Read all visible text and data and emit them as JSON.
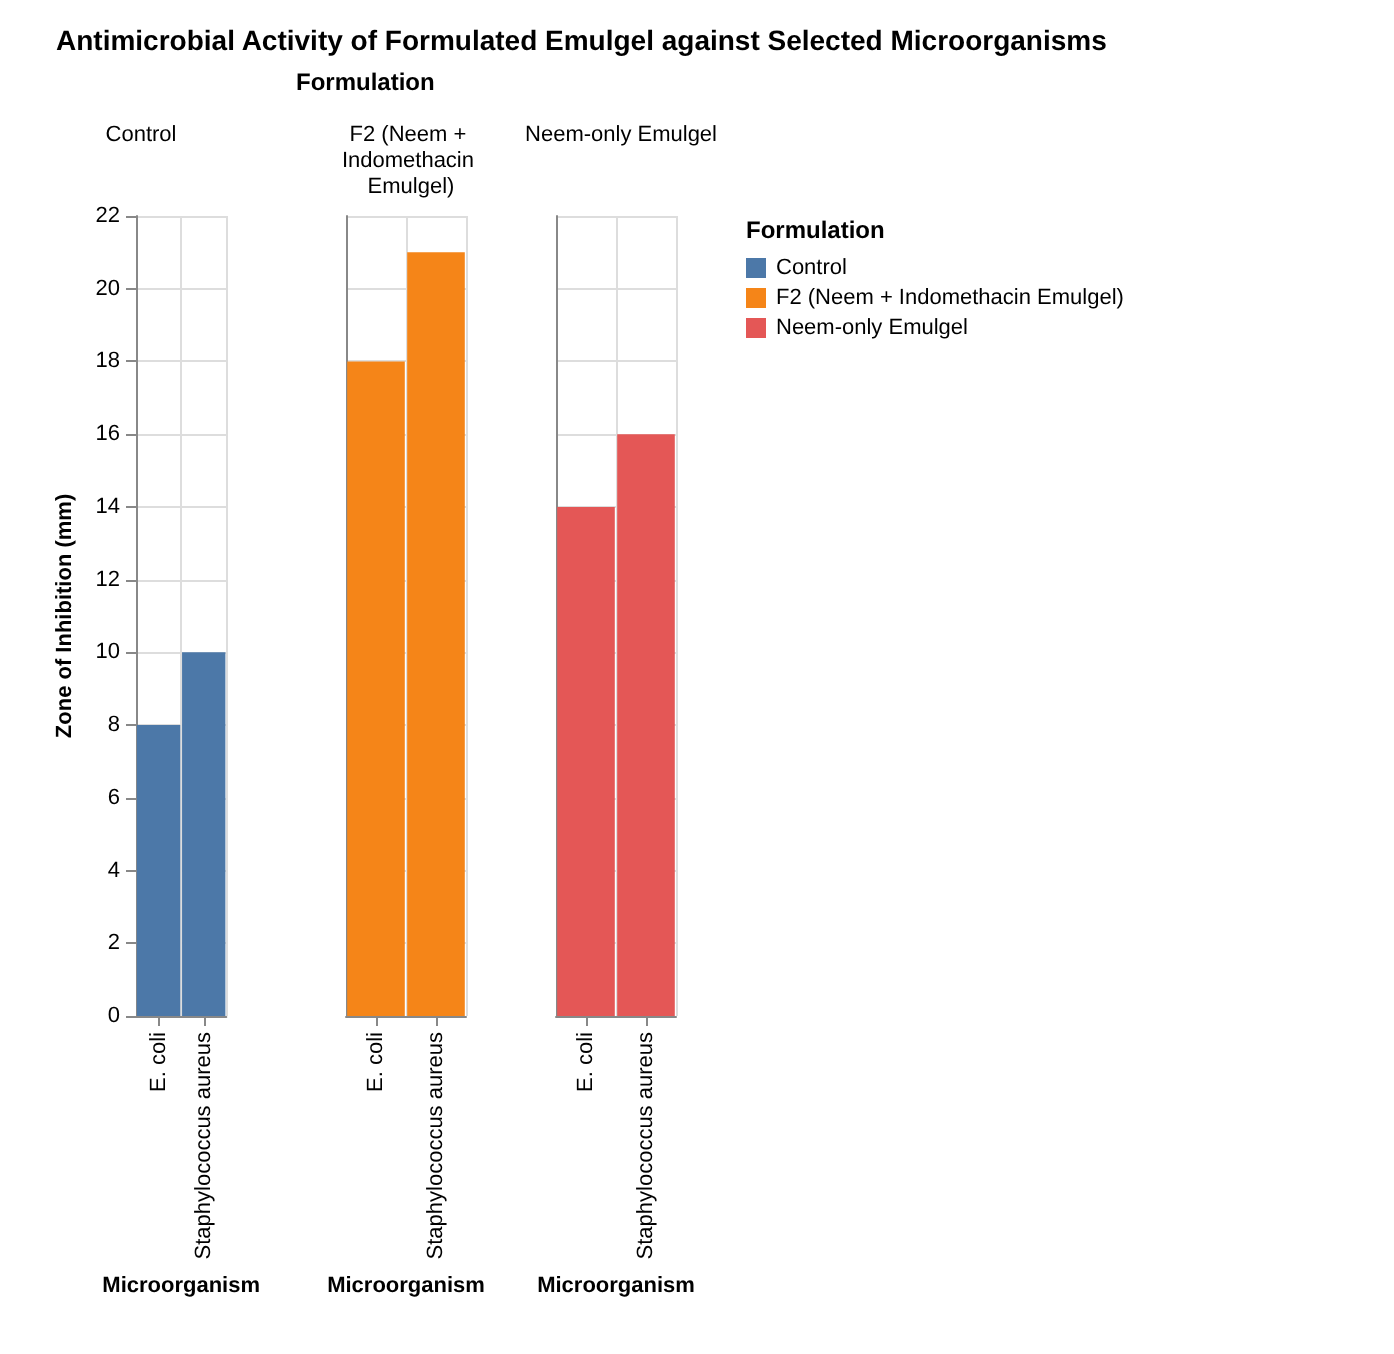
{
  "chart_data": [
    {
      "type": "bar",
      "title": "Control",
      "annotations": [
        "Antimicrobial Activity of Formulated Emulgel against Selected Microorganisms",
        "Formulation"
      ],
      "xlabel": "Microorganism",
      "ylabel": "Zone of Inhibition (mm)",
      "categories": [
        "E. coli",
        "Staphylococcus aureus"
      ],
      "series": [
        {
          "name": "Control",
          "color": "#4c78a8",
          "values": [
            8,
            10
          ]
        }
      ],
      "ylim": [
        0,
        22
      ],
      "yticks": [
        0,
        2,
        4,
        6,
        8,
        10,
        12,
        14,
        16,
        18,
        20,
        22
      ],
      "grid": true
    },
    {
      "type": "bar",
      "title": "F2 (Neem + Indomethacin Emulgel)",
      "xlabel": "Microorganism",
      "categories": [
        "E. coli",
        "Staphylococcus aureus"
      ],
      "series": [
        {
          "name": "F2 (Neem + Indomethacin Emulgel)",
          "color": "#f58518",
          "values": [
            18,
            21
          ]
        }
      ],
      "ylim": [
        0,
        22
      ],
      "yticks": [
        0,
        2,
        4,
        6,
        8,
        10,
        12,
        14,
        16,
        18,
        20,
        22
      ],
      "grid": true,
      "tick_labels": "x"
    },
    {
      "type": "bar",
      "title": "Neem-only Emulgel",
      "xlabel": "Microorganism",
      "categories": [
        "E. coli",
        "Staphylococcus aureus"
      ],
      "series": [
        {
          "name": "Neem-only Emulgel",
          "color": "#e45756",
          "values": [
            14,
            16
          ]
        }
      ],
      "ylim": [
        0,
        22
      ],
      "yticks": [
        0,
        2,
        4,
        6,
        8,
        10,
        12,
        14,
        16,
        18,
        20,
        22
      ],
      "grid": true,
      "tick_labels": "x",
      "legend": "right",
      "legend_title": "Formulation"
    }
  ]
}
